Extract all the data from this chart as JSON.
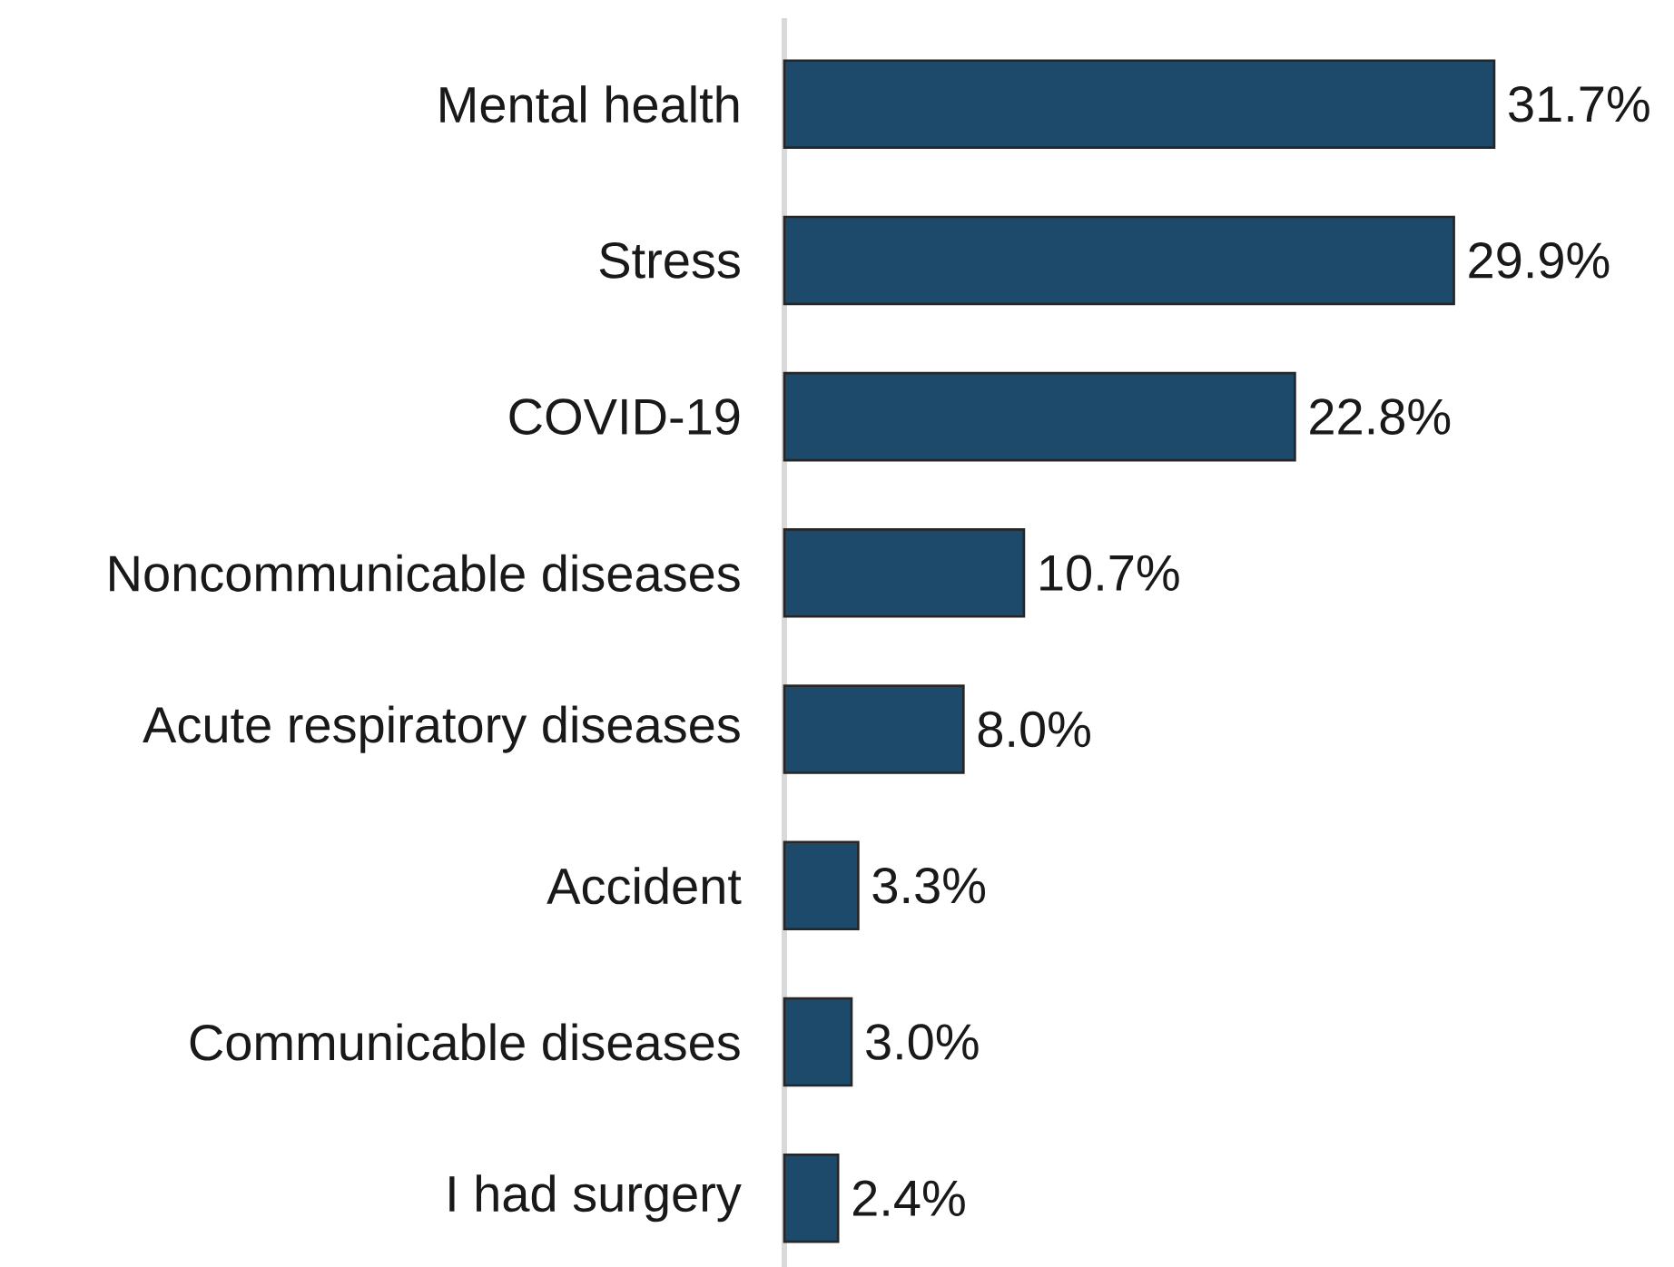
{
  "chart_data": {
    "type": "bar",
    "orientation": "horizontal",
    "categories": [
      "Mental health",
      "Stress",
      "COVID-19",
      "Noncommunicable diseases",
      "Acute respiratory diseases",
      "Accident",
      "Communicable diseases",
      "I had surgery"
    ],
    "values": [
      31.7,
      29.9,
      22.8,
      10.7,
      8.0,
      3.3,
      3.0,
      2.4
    ],
    "value_labels": [
      "31.7%",
      "29.9%",
      "22.8%",
      "10.7%",
      "8.0%",
      "3.3%",
      "3.0%",
      "2.4%"
    ],
    "color": "#1d4a6b"
  }
}
